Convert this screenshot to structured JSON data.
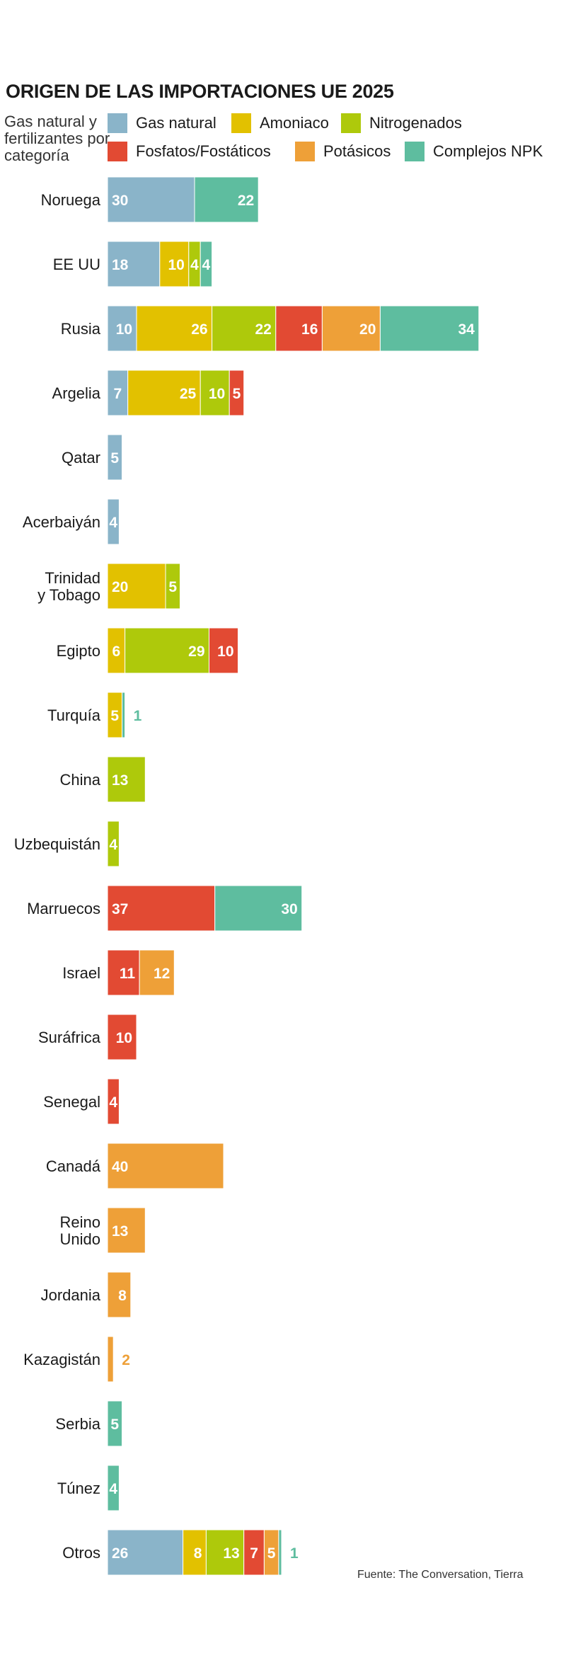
{
  "chart_data": {
    "type": "bar",
    "orientation": "horizontal",
    "stacked": true,
    "title": "ORIGEN DE LAS IMPORTACIONES UE 2025",
    "subtitle": "Gas natural y fertilizantes por categoría",
    "legend_position": "top",
    "grid": false,
    "xlim": [
      0,
      130
    ],
    "source": "Fuente: The Conversation, Tierra",
    "categories": [
      {
        "label": [
          "Noruega"
        ],
        "values": [
          30,
          0,
          0,
          0,
          0,
          22
        ]
      },
      {
        "label": [
          "EE UU"
        ],
        "values": [
          18,
          10,
          4,
          0,
          0,
          4
        ]
      },
      {
        "label": [
          "Rusia"
        ],
        "values": [
          10,
          26,
          22,
          16,
          20,
          34
        ]
      },
      {
        "label": [
          "Argelia"
        ],
        "values": [
          7,
          25,
          10,
          5,
          0,
          0
        ]
      },
      {
        "label": [
          "Qatar"
        ],
        "values": [
          5,
          0,
          0,
          0,
          0,
          0
        ]
      },
      {
        "label": [
          "Acerbaiyán"
        ],
        "values": [
          4,
          0,
          0,
          0,
          0,
          0
        ]
      },
      {
        "label": [
          "Trinidad",
          "y Tobago"
        ],
        "values": [
          0,
          20,
          5,
          0,
          0,
          0
        ]
      },
      {
        "label": [
          "Egipto"
        ],
        "values": [
          0,
          6,
          29,
          10,
          0,
          0
        ]
      },
      {
        "label": [
          "Turquía"
        ],
        "values": [
          0,
          5,
          0,
          0,
          0,
          1
        ]
      },
      {
        "label": [
          "China"
        ],
        "values": [
          0,
          0,
          13,
          0,
          0,
          0
        ]
      },
      {
        "label": [
          "Uzbequistán"
        ],
        "values": [
          0,
          0,
          4,
          0,
          0,
          0
        ]
      },
      {
        "label": [
          "Marruecos"
        ],
        "values": [
          0,
          0,
          0,
          37,
          0,
          30
        ]
      },
      {
        "label": [
          "Israel"
        ],
        "values": [
          0,
          0,
          0,
          11,
          12,
          0
        ]
      },
      {
        "label": [
          "Suráfrica"
        ],
        "values": [
          0,
          0,
          0,
          10,
          0,
          0
        ]
      },
      {
        "label": [
          "Senegal"
        ],
        "values": [
          0,
          0,
          0,
          4,
          0,
          0
        ]
      },
      {
        "label": [
          "Canadá"
        ],
        "values": [
          0,
          0,
          0,
          0,
          40,
          0
        ]
      },
      {
        "label": [
          "Reino",
          "Unido"
        ],
        "values": [
          0,
          0,
          0,
          0,
          13,
          0
        ]
      },
      {
        "label": [
          "Jordania"
        ],
        "values": [
          0,
          0,
          0,
          0,
          8,
          0
        ]
      },
      {
        "label": [
          "Kazagistán"
        ],
        "values": [
          0,
          0,
          0,
          0,
          2,
          0
        ]
      },
      {
        "label": [
          "Serbia"
        ],
        "values": [
          0,
          0,
          0,
          0,
          0,
          5
        ]
      },
      {
        "label": [
          "Túnez"
        ],
        "values": [
          0,
          0,
          0,
          0,
          0,
          4
        ]
      },
      {
        "label": [
          "Otros"
        ],
        "values": [
          26,
          8,
          13,
          7,
          5,
          1
        ]
      }
    ],
    "series": [
      {
        "name": "Gas natural",
        "color": "#8ab4c9"
      },
      {
        "name": "Amoniaco",
        "color": "#e2c100"
      },
      {
        "name": "Nitrogenados",
        "color": "#aec90b"
      },
      {
        "name": "Fosfatos/Fostáticos",
        "color": "#e24a33"
      },
      {
        "name": "Potásicos",
        "color": "#eea038"
      },
      {
        "name": "Complejos NPK",
        "color": "#5ebd9f"
      }
    ]
  }
}
